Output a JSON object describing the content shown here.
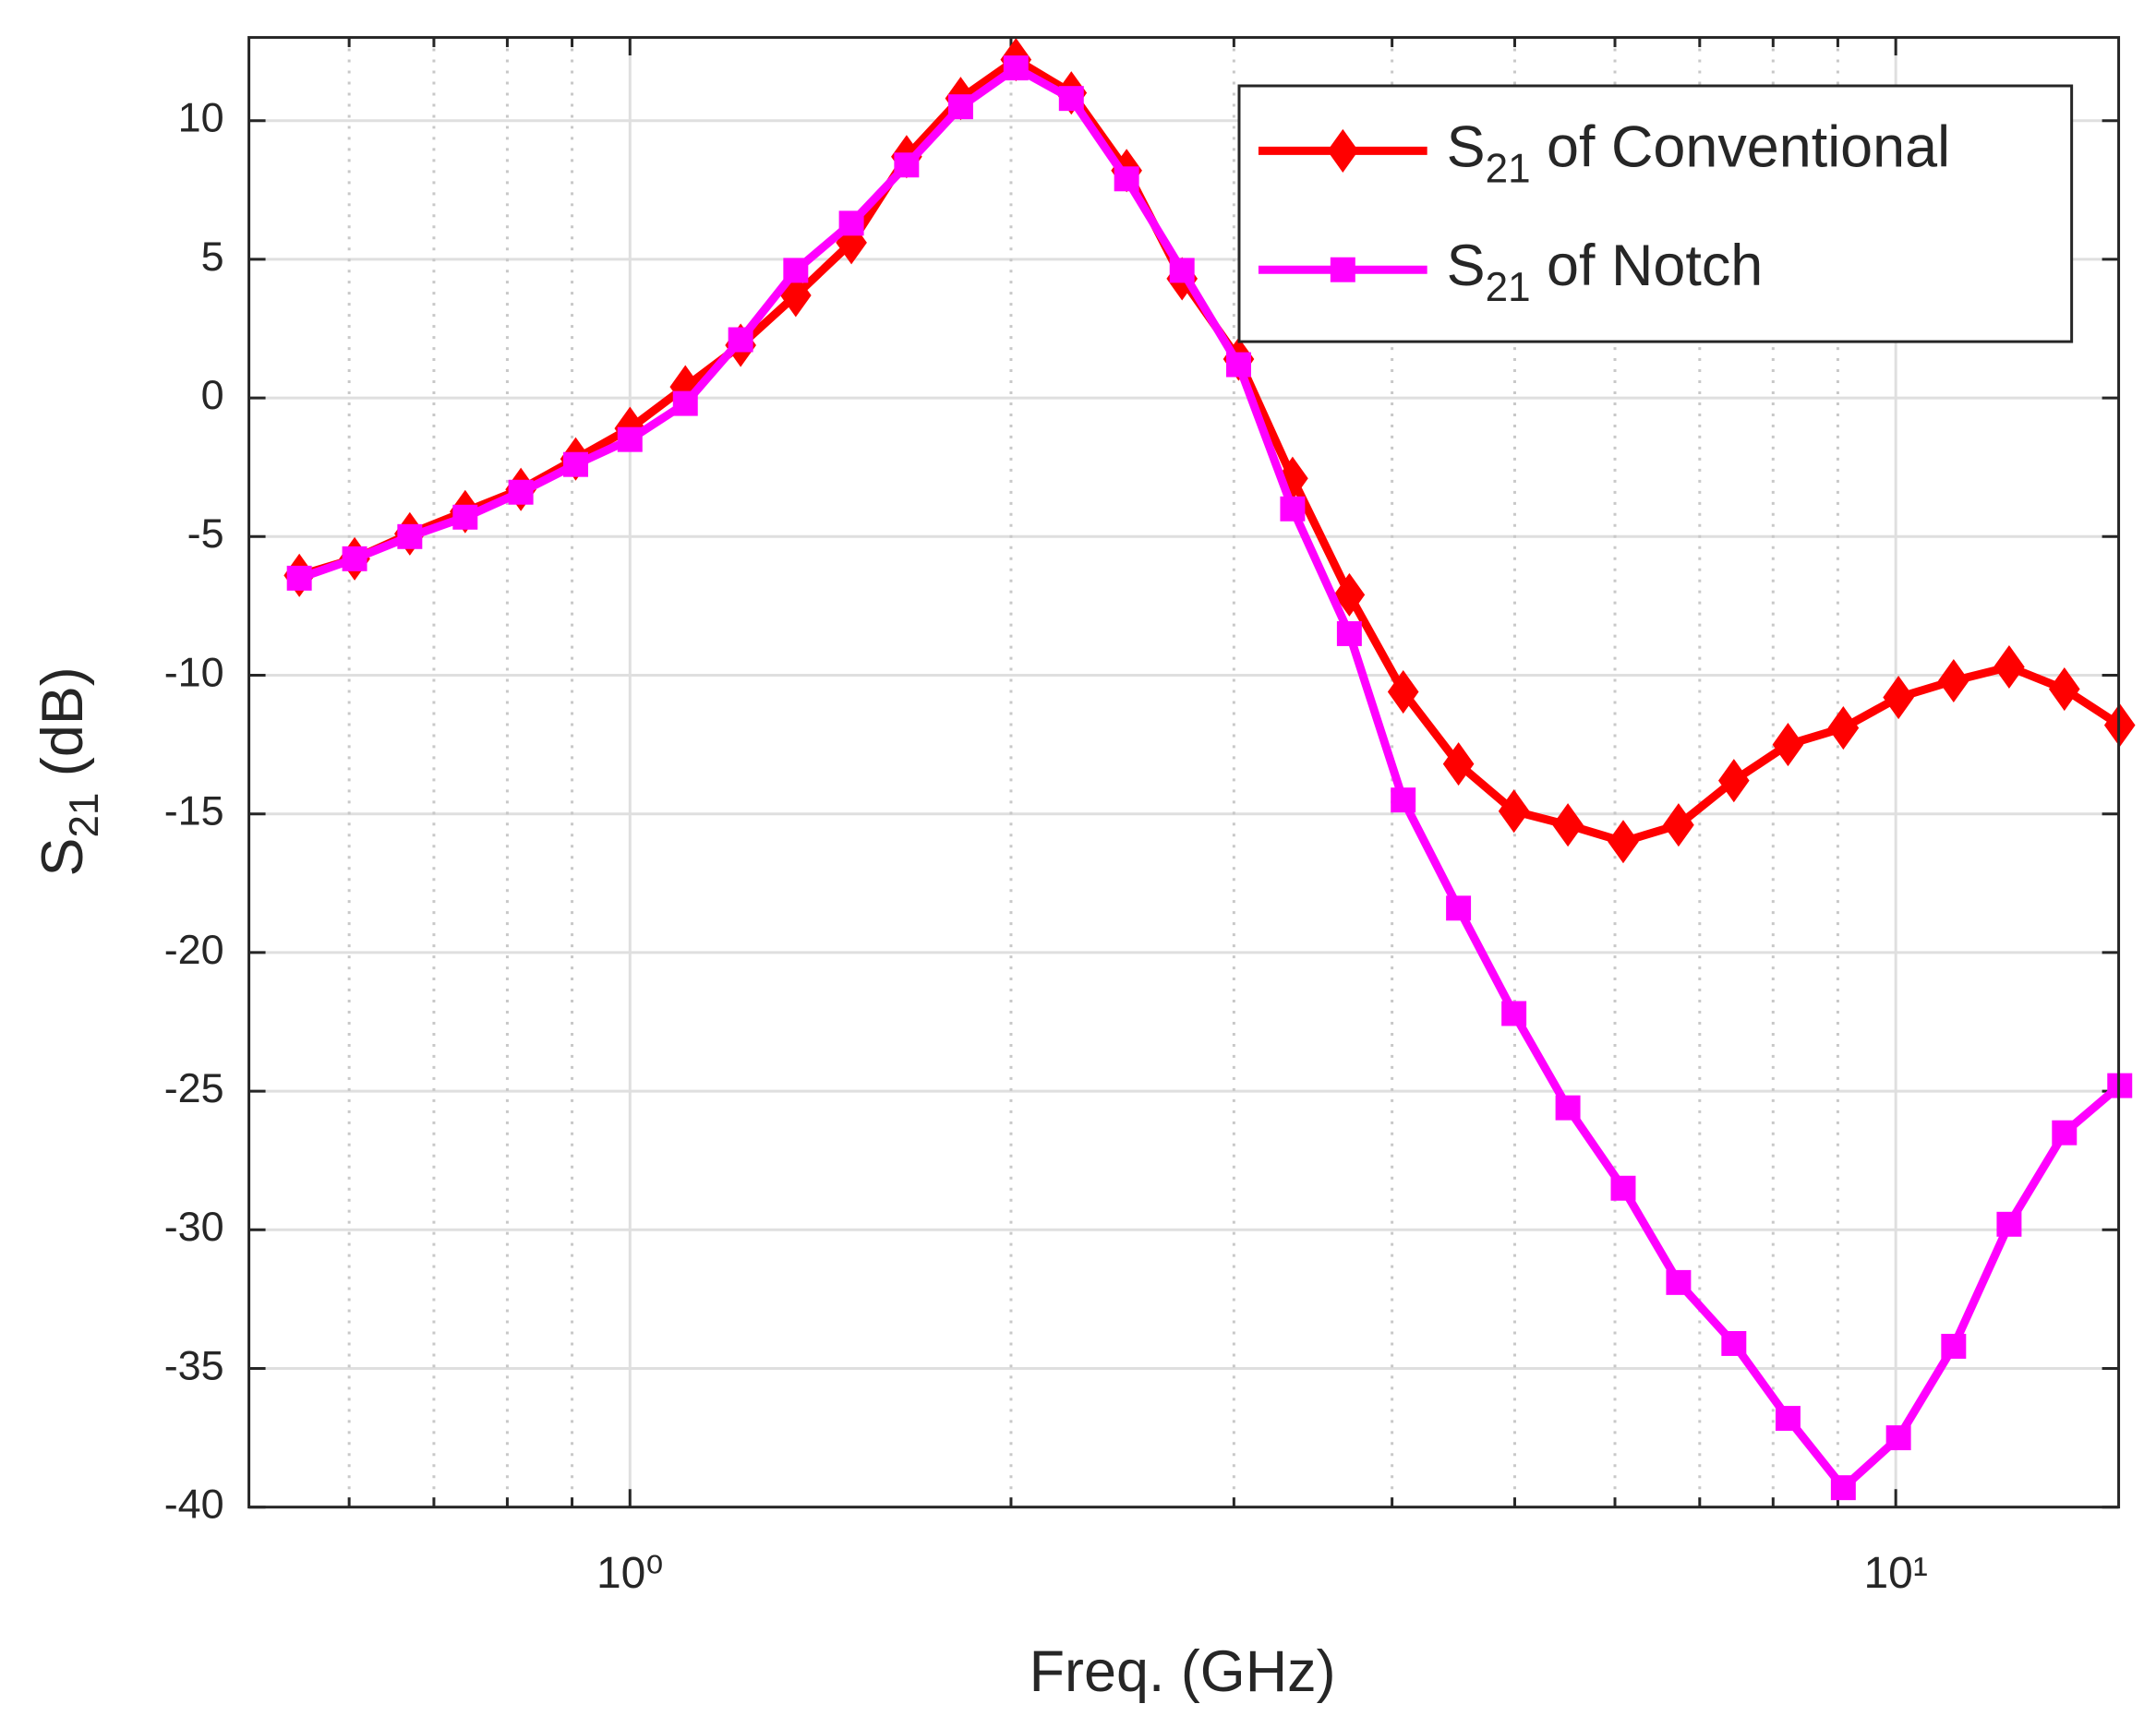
{
  "chart_data": {
    "type": "line",
    "x_label": "Freq. (GHz)",
    "y_label": "S21 (dB)",
    "xscale": "log",
    "xlim": [
      0.5,
      15
    ],
    "ylim": [
      -40,
      13
    ],
    "xticks": [
      {
        "value": 1,
        "label": "10⁰"
      },
      {
        "value": 10,
        "label": "10¹"
      }
    ],
    "xminorticks": [
      0.6,
      0.7,
      0.8,
      0.9,
      2,
      3,
      4,
      5,
      6,
      7,
      8,
      9
    ],
    "yticks": [
      -40,
      -35,
      -30,
      -25,
      -20,
      -15,
      -10,
      -5,
      0,
      5,
      10
    ],
    "grid": true,
    "legend": "northeast",
    "x": [
      0.548,
      0.606,
      0.67,
      0.741,
      0.82,
      0.906,
      1.0,
      1.106,
      1.223,
      1.352,
      1.496,
      1.654,
      1.825,
      2.018,
      2.232,
      2.468,
      2.73,
      3.026,
      3.338,
      3.701,
      4.082,
      4.514,
      4.993,
      5.508,
      6.091,
      6.736,
      7.449,
      8.22,
      9.09,
      10.05,
      11.11,
      12.29,
      13.59,
      15.03
    ],
    "series": [
      {
        "name": "S21 of Conventional",
        "color": "#ff0000",
        "marker": "diamond",
        "values": [
          -6.4,
          -5.8,
          -4.9,
          -4.1,
          -3.3,
          -2.2,
          -1.1,
          0.4,
          1.9,
          3.7,
          5.6,
          8.7,
          10.8,
          12.2,
          11.0,
          8.2,
          4.3,
          1.4,
          -2.9,
          -7.1,
          -10.6,
          -13.2,
          -14.9,
          -15.4,
          -16.0,
          -15.4,
          -13.8,
          -12.5,
          -11.9,
          -10.8,
          -10.2,
          -9.7,
          -10.5,
          -11.8
        ]
      },
      {
        "name": "S21 of Notch",
        "color": "#ff00ff",
        "marker": "square",
        "values": [
          -6.5,
          -5.8,
          -5.0,
          -4.3,
          -3.4,
          -2.4,
          -1.5,
          -0.2,
          2.1,
          4.6,
          6.3,
          8.4,
          10.5,
          11.9,
          10.8,
          7.9,
          4.6,
          1.2,
          -4.0,
          -8.5,
          -14.5,
          -18.4,
          -22.2,
          -25.6,
          -28.5,
          -31.9,
          -34.1,
          -36.8,
          -39.3,
          -37.5,
          -34.2,
          -29.8,
          -26.5,
          -24.8
        ]
      }
    ]
  }
}
